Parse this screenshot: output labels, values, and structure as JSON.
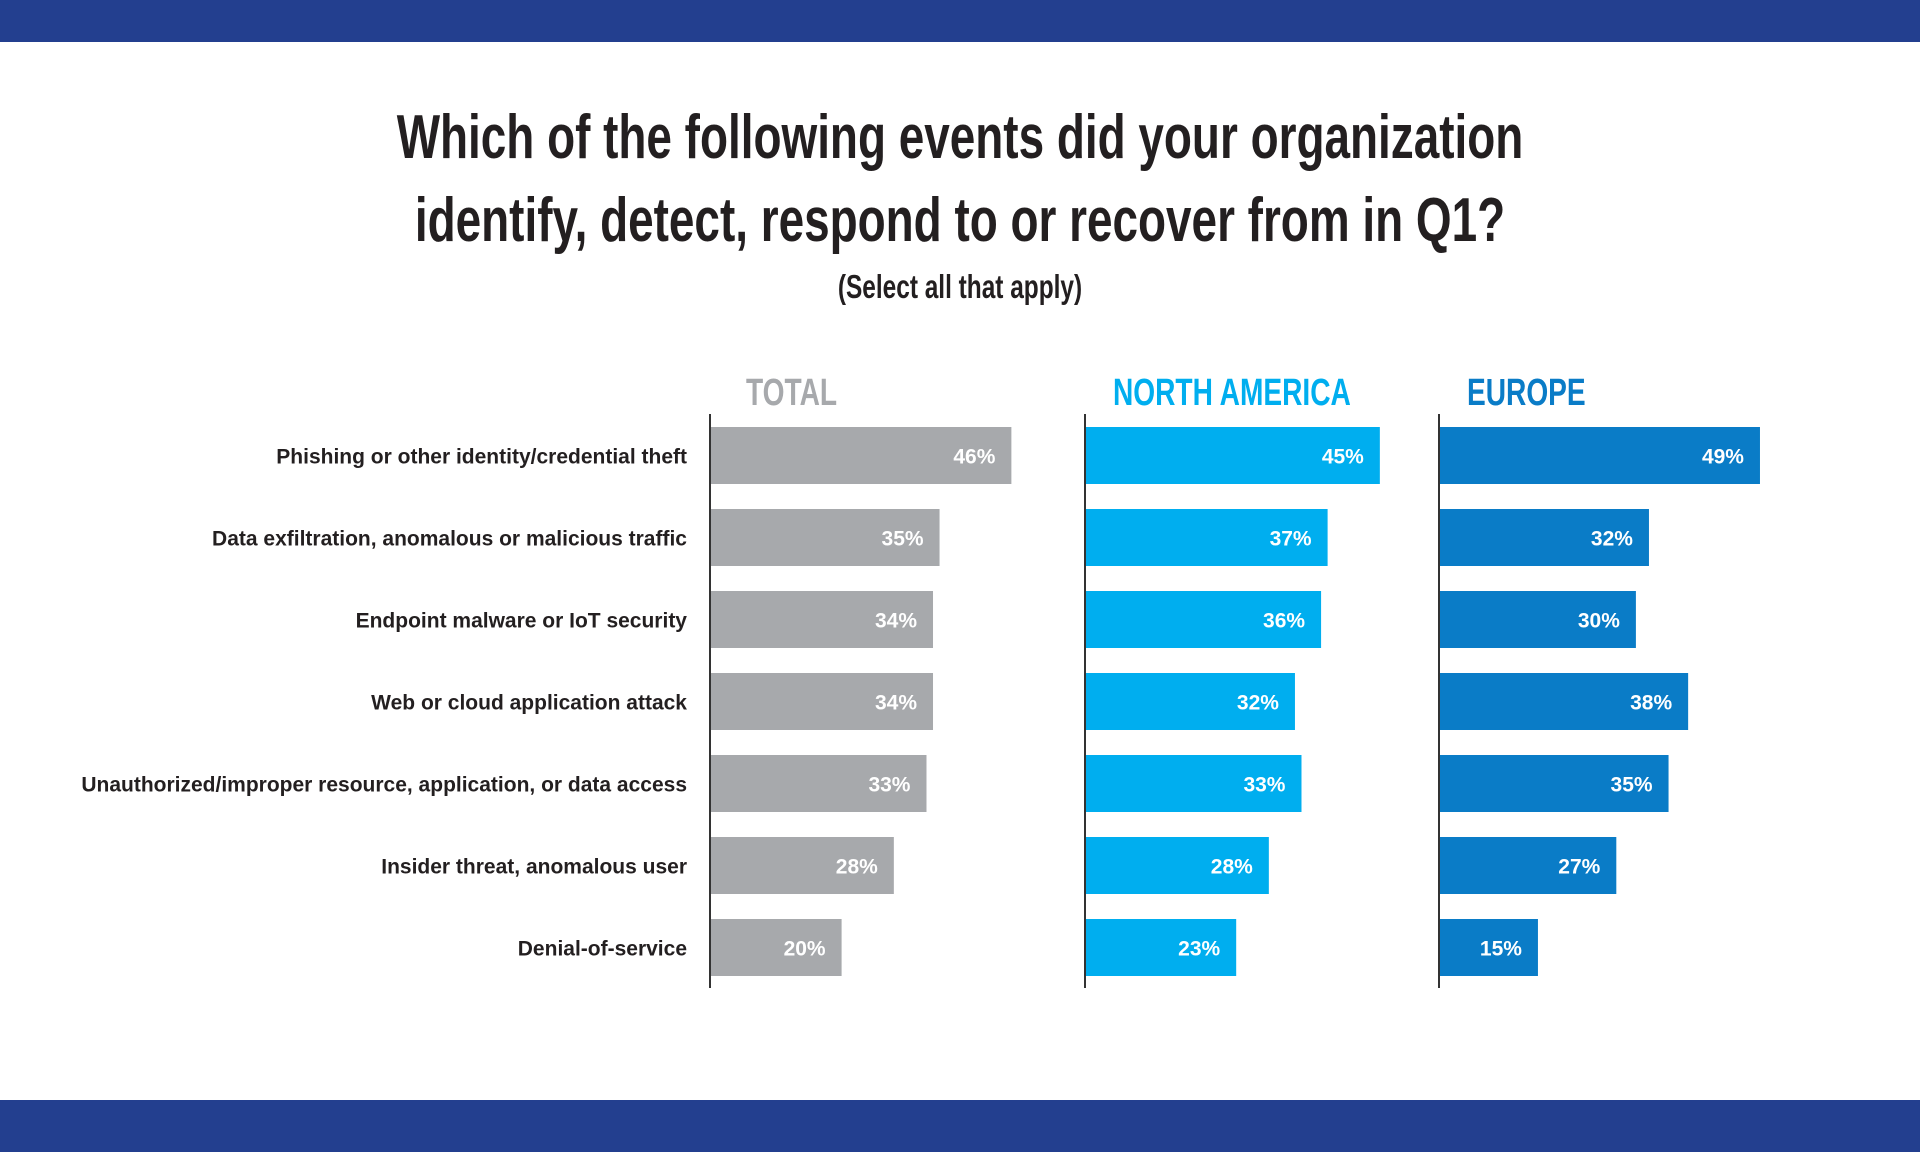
{
  "title_line1": "Which of the following events did your organization",
  "title_line2": "identify, detect, respond to or recover from in Q1?",
  "subtitle": "(Select all that apply)",
  "colors": {
    "band": "#233f8f",
    "total": "#a7a9ac",
    "north_america": "#00aeef",
    "europe": "#0a7cc7",
    "label_text": "#231f20"
  },
  "chart_data": {
    "type": "bar",
    "orientation": "horizontal",
    "title": "Which of the following events did your organization identify, detect, respond to or recover from in Q1?",
    "subtitle": "(Select all that apply)",
    "categories": [
      "Phishing or other identity/credential theft",
      "Data exfiltration, anomalous or malicious traffic",
      "Endpoint malware or IoT security",
      "Web or cloud application attack",
      "Unauthorized/improper resource, application, or data access",
      "Insider threat, anomalous user",
      "Denial-of-service"
    ],
    "series": [
      {
        "name": "TOTAL",
        "color": "#a7a9ac",
        "header_color": "#a7a9ac",
        "values": [
          46,
          35,
          34,
          34,
          33,
          28,
          20
        ]
      },
      {
        "name": "NORTH AMERICA",
        "color": "#00aeef",
        "header_color": "#00aeef",
        "values": [
          45,
          37,
          36,
          32,
          33,
          28,
          23
        ]
      },
      {
        "name": "EUROPE",
        "color": "#0a7cc7",
        "header_color": "#0a7cc7",
        "values": [
          49,
          32,
          30,
          38,
          35,
          27,
          15
        ]
      }
    ],
    "value_suffix": "%",
    "grid": false
  }
}
